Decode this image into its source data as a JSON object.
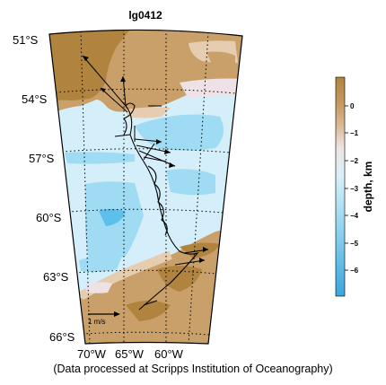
{
  "title": "lg0412",
  "footer": "(Data processed at Scripps Institution of Oceanography)",
  "lat_labels": [
    "51°S",
    "54°S",
    "57°S",
    "60°S",
    "63°S",
    "66°S"
  ],
  "lon_labels": [
    "70°W",
    "65°W",
    "60°W"
  ],
  "scale_label": "1 m/s",
  "colorbar": {
    "label": "depth, km",
    "ticks": [
      "0",
      "−1",
      "−2",
      "−3",
      "−4",
      "−5",
      "−6"
    ],
    "colors": {
      "land_dark": "#b0843e",
      "land_mid": "#c8a06a",
      "land_light": "#e8cfb2",
      "shelf": "#f2e4e4",
      "ocean_light": "#d9f0fa",
      "ocean_mid": "#9ad8f0",
      "ocean_deep": "#3fa8df"
    }
  },
  "colors": {
    "land_dark": "#b0843e",
    "land_mid": "#caa06a",
    "land_light": "#e6cdb0",
    "shelf": "#efe2e6",
    "ocean_light": "#d4eefa",
    "ocean_mid": "#9fdcf3",
    "ocean_deep": "#5cc0ea",
    "track": "#000000"
  }
}
